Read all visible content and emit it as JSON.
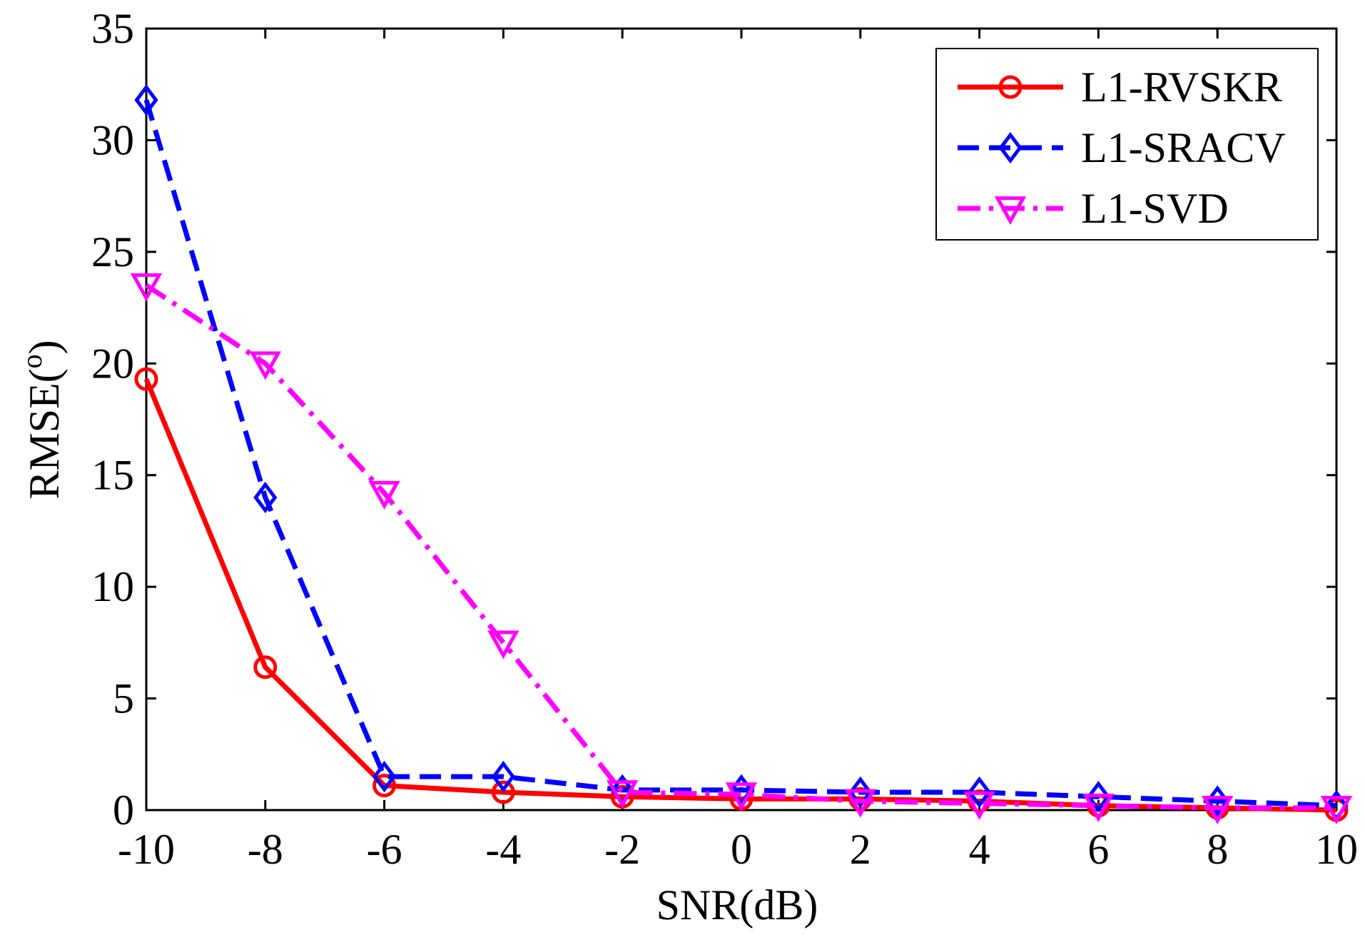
{
  "chart_data": {
    "type": "line",
    "title": "",
    "xlabel": "SNR(dB)",
    "ylabel": "RMSE(",
    "ylabel_superscript": "o",
    "ylabel_suffix": ")",
    "x": [
      -10,
      -8,
      -6,
      -4,
      -2,
      0,
      2,
      4,
      6,
      8,
      10
    ],
    "xlim": [
      -10,
      10
    ],
    "ylim": [
      0,
      35
    ],
    "x_ticks": [
      "-10",
      "-8",
      "-6",
      "-4",
      "-2",
      "0",
      "2",
      "4",
      "6",
      "8",
      "10"
    ],
    "y_ticks": [
      "0",
      "5",
      "10",
      "15",
      "20",
      "25",
      "30",
      "35"
    ],
    "grid": false,
    "legend_position": "top-right",
    "series": [
      {
        "name": "L1-RVSKR",
        "color": "#ff0000",
        "line_style": "solid",
        "marker": "circle",
        "values": [
          19.3,
          6.4,
          1.1,
          0.8,
          0.6,
          0.5,
          0.5,
          0.4,
          0.2,
          0.1,
          0.0
        ]
      },
      {
        "name": "L1-SRACV",
        "color": "#0000ff",
        "line_style": "dashed",
        "marker": "diamond",
        "values": [
          31.8,
          14.0,
          1.5,
          1.5,
          0.9,
          0.9,
          0.8,
          0.8,
          0.6,
          0.4,
          0.2
        ]
      },
      {
        "name": "L1-SVD",
        "color": "#ff00ff",
        "line_style": "dash-dot",
        "marker": "triangle-down",
        "values": [
          23.5,
          20.0,
          14.2,
          7.5,
          0.8,
          0.7,
          0.4,
          0.3,
          0.2,
          0.1,
          0.1
        ]
      }
    ]
  }
}
